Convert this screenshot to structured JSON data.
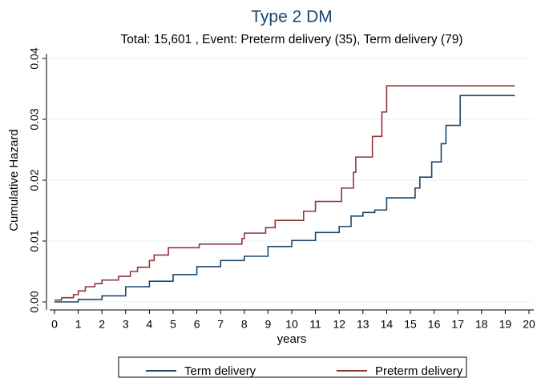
{
  "chart_data": {
    "type": "step",
    "title": "Type 2 DM",
    "subtitle": "Total: 15,601 , Event: Preterm delivery (35), Term delivery (79)",
    "x_label": "years",
    "y_label": "Cumulative Hazard",
    "xlim": [
      0,
      20
    ],
    "xticks": [
      0,
      1,
      2,
      3,
      4,
      5,
      6,
      7,
      8,
      9,
      10,
      11,
      12,
      13,
      14,
      15,
      16,
      17,
      18,
      19,
      20
    ],
    "ylim": [
      0,
      0.04
    ],
    "yticks": [
      {
        "value": 0,
        "label": "0.00"
      },
      {
        "value": 0.01,
        "label": "0.01"
      },
      {
        "value": 0.02,
        "label": "0.02"
      },
      {
        "value": 0.03,
        "label": "0.03"
      },
      {
        "value": 0.04,
        "label": "0.04"
      }
    ],
    "grid": true,
    "legend_position": "bottom",
    "series": [
      {
        "name": "Term delivery",
        "color": "#1a476f",
        "x": [
          0,
          1,
          2,
          3,
          4,
          5,
          6,
          7,
          8,
          9,
          10,
          11,
          12,
          12.5,
          13,
          13.5,
          14,
          15.2,
          15.4,
          15.9,
          16.3,
          16.5,
          17.1,
          19.4
        ],
        "values": [
          0,
          0.0004,
          0.001,
          0.0025,
          0.0034,
          0.0045,
          0.0058,
          0.0068,
          0.0075,
          0.0091,
          0.0101,
          0.0114,
          0.0124,
          0.0141,
          0.0147,
          0.0151,
          0.0171,
          0.0187,
          0.0205,
          0.023,
          0.026,
          0.029,
          0.0339,
          0.0339
        ]
      },
      {
        "name": "Preterm delivery",
        "color": "#90353b",
        "x": [
          0,
          0.3,
          0.8,
          1,
          1.3,
          1.7,
          2,
          2.7,
          3.2,
          3.5,
          4,
          4.2,
          4.8,
          6.1,
          7.9,
          8,
          8.9,
          9.3,
          10.5,
          11,
          12.1,
          12.6,
          12.7,
          13.4,
          13.8,
          14,
          19.4
        ],
        "values": [
          0.0003,
          0.0007,
          0.0012,
          0.0018,
          0.0025,
          0.003,
          0.0036,
          0.0042,
          0.005,
          0.0057,
          0.0068,
          0.0077,
          0.0089,
          0.0095,
          0.0104,
          0.0113,
          0.0122,
          0.0134,
          0.0149,
          0.0165,
          0.0187,
          0.0213,
          0.0238,
          0.0272,
          0.0312,
          0.0355,
          0.0355
        ]
      }
    ]
  }
}
